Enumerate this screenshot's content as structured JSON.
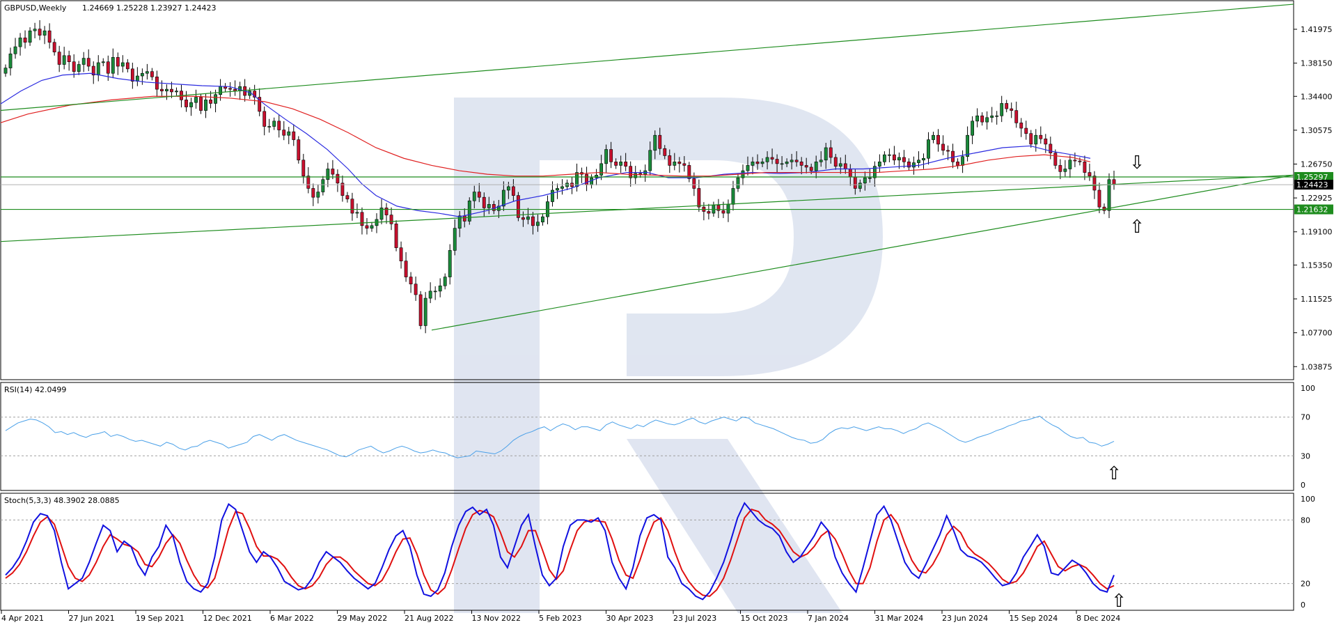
{
  "header": {
    "symbol_timeframe": "GBPUSD,Weekly",
    "ohlc": "1.24669 1.25228 1.23927 1.24423"
  },
  "colors": {
    "bull_candle": "#1a8a3a",
    "bear_candle": "#c8102e",
    "ma_fast": "#2a2ae0",
    "ma_slow": "#e02020",
    "channel": "#1e8c1e",
    "rsi_line": "#4aa0e8",
    "stoch_main": "#1010e0",
    "stoch_signal": "#e01010",
    "level_label_bg": "#1e8c1e",
    "price_label_bg": "#000000",
    "watermark": "#dde3f0"
  },
  "chart_data": [
    {
      "type": "candlestick",
      "title": "GBPUSD,Weekly",
      "ylim": [
        1.024,
        1.452
      ],
      "price_ticks": [
        "1.41975",
        "1.38150",
        "1.34400",
        "1.30575",
        "1.26750",
        "1.22925",
        "1.19100",
        "1.15350",
        "1.11525",
        "1.07700",
        "1.03875"
      ],
      "levels": [
        {
          "label": "1.25297",
          "value": 1.25297
        },
        {
          "label": "1.21632",
          "value": 1.21632
        }
      ],
      "last_price": {
        "label": "1.24423",
        "value": 1.24423
      },
      "x_labels": [
        "4 Apr 2021",
        "27 Jun 2021",
        "19 Sep 2021",
        "12 Dec 2021",
        "6 Mar 2022",
        "29 May 2022",
        "21 Aug 2022",
        "13 Nov 2022",
        "5 Feb 2023",
        "30 Apr 2023",
        "23 Jul 2023",
        "15 Oct 2023",
        "7 Jan 2024",
        "31 Mar 2024",
        "23 Jun 2024",
        "15 Sep 2024",
        "8 Dec 2024"
      ],
      "close_series": [
        1.376,
        1.392,
        1.4,
        1.41,
        1.405,
        1.418,
        1.42,
        1.413,
        1.418,
        1.405,
        1.394,
        1.38,
        1.39,
        1.383,
        1.372,
        1.38,
        1.387,
        1.378,
        1.368,
        1.382,
        1.383,
        1.37,
        1.388,
        1.378,
        1.382,
        1.375,
        1.361,
        1.367,
        1.37,
        1.372,
        1.366,
        1.352,
        1.35,
        1.352,
        1.349,
        1.35,
        1.34,
        1.332,
        1.337,
        1.343,
        1.328,
        1.34,
        1.336,
        1.346,
        1.355,
        1.353,
        1.352,
        1.35,
        1.355,
        1.345,
        1.35,
        1.343,
        1.327,
        1.31,
        1.31,
        1.316,
        1.306,
        1.3,
        1.304,
        1.295,
        1.272,
        1.254,
        1.24,
        1.23,
        1.236,
        1.25,
        1.262,
        1.256,
        1.246,
        1.232,
        1.228,
        1.212,
        1.213,
        1.198,
        1.195,
        1.198,
        1.205,
        1.218,
        1.21,
        1.2,
        1.173,
        1.158,
        1.14,
        1.132,
        1.12,
        1.085,
        1.116,
        1.124,
        1.124,
        1.13,
        1.14,
        1.17,
        1.195,
        1.209,
        1.203,
        1.226,
        1.236,
        1.23,
        1.218,
        1.222,
        1.215,
        1.22,
        1.238,
        1.242,
        1.232,
        1.207,
        1.205,
        1.208,
        1.198,
        1.202,
        1.208,
        1.225,
        1.238,
        1.24,
        1.242,
        1.246,
        1.242,
        1.258,
        1.256,
        1.244,
        1.252,
        1.255,
        1.268,
        1.284,
        1.27,
        1.266,
        1.27,
        1.265,
        1.252,
        1.257,
        1.256,
        1.26,
        1.283,
        1.3,
        1.285,
        1.277,
        1.266,
        1.27,
        1.268,
        1.266,
        1.251,
        1.24,
        1.219,
        1.214,
        1.212,
        1.221,
        1.215,
        1.212,
        1.222,
        1.24,
        1.252,
        1.26,
        1.266,
        1.27,
        1.268,
        1.27,
        1.275,
        1.273,
        1.268,
        1.268,
        1.27,
        1.272,
        1.27,
        1.266,
        1.264,
        1.26,
        1.27,
        1.272,
        1.286,
        1.275,
        1.265,
        1.268,
        1.262,
        1.253,
        1.24,
        1.246,
        1.252,
        1.252,
        1.265,
        1.27,
        1.278,
        1.278,
        1.272,
        1.275,
        1.27,
        1.264,
        1.269,
        1.272,
        1.274,
        1.295,
        1.3,
        1.29,
        1.283,
        1.282,
        1.27,
        1.266,
        1.276,
        1.3,
        1.316,
        1.322,
        1.315,
        1.32,
        1.322,
        1.322,
        1.336,
        1.33,
        1.328,
        1.314,
        1.308,
        1.302,
        1.29,
        1.3,
        1.296,
        1.29,
        1.28,
        1.266,
        1.259,
        1.262,
        1.272,
        1.271,
        1.27,
        1.258,
        1.254,
        1.238,
        1.219,
        1.215,
        1.25,
        1.244
      ],
      "ma_fast_points": [
        [
          0,
          1.335
        ],
        [
          30,
          1.35
        ],
        [
          60,
          1.362
        ],
        [
          90,
          1.368
        ],
        [
          130,
          1.37
        ],
        [
          170,
          1.364
        ],
        [
          210,
          1.36
        ],
        [
          250,
          1.358
        ],
        [
          290,
          1.356
        ],
        [
          330,
          1.355
        ],
        [
          360,
          1.348
        ],
        [
          380,
          1.335
        ],
        [
          410,
          1.318
        ],
        [
          440,
          1.302
        ],
        [
          470,
          1.284
        ],
        [
          500,
          1.262
        ],
        [
          520,
          1.245
        ],
        [
          540,
          1.232
        ],
        [
          570,
          1.22
        ],
        [
          600,
          1.215
        ],
        [
          630,
          1.212
        ],
        [
          660,
          1.208
        ],
        [
          700,
          1.215
        ],
        [
          740,
          1.226
        ],
        [
          780,
          1.232
        ],
        [
          820,
          1.24
        ],
        [
          860,
          1.252
        ],
        [
          900,
          1.258
        ],
        [
          930,
          1.258
        ],
        [
          960,
          1.252
        ],
        [
          1000,
          1.252
        ],
        [
          1040,
          1.256
        ],
        [
          1080,
          1.258
        ],
        [
          1120,
          1.257
        ],
        [
          1160,
          1.258
        ],
        [
          1200,
          1.262
        ],
        [
          1240,
          1.262
        ],
        [
          1280,
          1.264
        ],
        [
          1320,
          1.266
        ],
        [
          1360,
          1.274
        ],
        [
          1400,
          1.28
        ],
        [
          1440,
          1.286
        ],
        [
          1480,
          1.288
        ],
        [
          1510,
          1.282
        ],
        [
          1540,
          1.278
        ],
        [
          1566,
          1.274
        ]
      ],
      "ma_slow_points": [
        [
          0,
          1.314
        ],
        [
          40,
          1.324
        ],
        [
          100,
          1.334
        ],
        [
          160,
          1.34
        ],
        [
          220,
          1.344
        ],
        [
          280,
          1.344
        ],
        [
          330,
          1.342
        ],
        [
          380,
          1.338
        ],
        [
          420,
          1.33
        ],
        [
          460,
          1.318
        ],
        [
          500,
          1.303
        ],
        [
          540,
          1.286
        ],
        [
          580,
          1.274
        ],
        [
          620,
          1.266
        ],
        [
          660,
          1.26
        ],
        [
          700,
          1.256
        ],
        [
          740,
          1.254
        ],
        [
          780,
          1.254
        ],
        [
          820,
          1.256
        ],
        [
          860,
          1.258
        ],
        [
          900,
          1.256
        ],
        [
          940,
          1.255
        ],
        [
          980,
          1.254
        ],
        [
          1020,
          1.254
        ],
        [
          1060,
          1.256
        ],
        [
          1100,
          1.258
        ],
        [
          1140,
          1.258
        ],
        [
          1180,
          1.258
        ],
        [
          1220,
          1.258
        ],
        [
          1260,
          1.258
        ],
        [
          1300,
          1.26
        ],
        [
          1340,
          1.262
        ],
        [
          1380,
          1.266
        ],
        [
          1420,
          1.272
        ],
        [
          1460,
          1.276
        ],
        [
          1500,
          1.278
        ],
        [
          1540,
          1.275
        ],
        [
          1566,
          1.27
        ]
      ],
      "channel_lines": [
        {
          "from": [
            "Mar 2021",
            1.18
          ],
          "to": [
            "Jan 2025",
            1.255
          ]
        },
        {
          "from": [
            "Mar 2021",
            1.328
          ],
          "to": [
            "Jan 2025",
            1.448
          ]
        },
        {
          "from": [
            "Sep 2022",
            1.08
          ],
          "to": [
            "Jan 2025",
            1.255
          ]
        }
      ]
    },
    {
      "type": "line",
      "title": "RSI(14) 42.0499",
      "ylim": [
        0,
        100
      ],
      "levels": [
        30,
        70
      ],
      "y_ticks": [
        "100",
        "70",
        "30",
        "0"
      ],
      "values": [
        56,
        60,
        64,
        66,
        68,
        67,
        64,
        60,
        54,
        55,
        52,
        54,
        51,
        49,
        52,
        53,
        55,
        50,
        52,
        50,
        47,
        45,
        46,
        44,
        42,
        40,
        44,
        42,
        38,
        36,
        39,
        40,
        44,
        46,
        44,
        42,
        38,
        40,
        42,
        44,
        50,
        52,
        49,
        46,
        50,
        52,
        49,
        46,
        44,
        42,
        40,
        38,
        36,
        33,
        30,
        29,
        32,
        36,
        38,
        40,
        36,
        33,
        35,
        38,
        40,
        38,
        35,
        33,
        34,
        36,
        34,
        33,
        30,
        28,
        29,
        30,
        35,
        34,
        33,
        32,
        35,
        40,
        46,
        50,
        53,
        55,
        58,
        60,
        56,
        60,
        63,
        61,
        57,
        60,
        60,
        58,
        56,
        62,
        65,
        62,
        60,
        58,
        62,
        60,
        64,
        67,
        65,
        63,
        62,
        64,
        67,
        69,
        65,
        63,
        66,
        68,
        70,
        68,
        66,
        70,
        69,
        64,
        62,
        60,
        58,
        55,
        52,
        49,
        47,
        46,
        43,
        44,
        47,
        53,
        57,
        59,
        58,
        60,
        58,
        56,
        58,
        60,
        58,
        58,
        56,
        53,
        56,
        58,
        62,
        64,
        61,
        58,
        54,
        50,
        46,
        44,
        46,
        49,
        51,
        53,
        56,
        58,
        61,
        63,
        66,
        67,
        69,
        71,
        66,
        62,
        59,
        54,
        50,
        48,
        49,
        44,
        43,
        40,
        42,
        45
      ],
      "arrow_up_label": "⇧"
    },
    {
      "type": "line",
      "title": "Stoch(5,3,3) 48.3902 28.0885",
      "ylim": [
        0,
        100
      ],
      "levels": [
        20,
        80
      ],
      "y_ticks": [
        "100",
        "80",
        "20",
        "0"
      ],
      "main_values": [
        28,
        35,
        45,
        60,
        78,
        86,
        84,
        70,
        40,
        15,
        20,
        25,
        40,
        58,
        75,
        70,
        50,
        60,
        55,
        38,
        28,
        45,
        55,
        75,
        65,
        40,
        22,
        15,
        12,
        20,
        45,
        80,
        95,
        90,
        70,
        50,
        40,
        50,
        45,
        35,
        22,
        18,
        14,
        16,
        25,
        40,
        50,
        45,
        40,
        32,
        25,
        20,
        15,
        20,
        35,
        52,
        65,
        70,
        55,
        28,
        10,
        8,
        14,
        30,
        55,
        75,
        88,
        92,
        85,
        90,
        75,
        45,
        35,
        55,
        75,
        85,
        55,
        28,
        18,
        25,
        55,
        75,
        80,
        80,
        78,
        82,
        70,
        40,
        25,
        15,
        35,
        65,
        82,
        85,
        80,
        45,
        35,
        20,
        15,
        8,
        5,
        12,
        25,
        40,
        60,
        82,
        96,
        88,
        80,
        75,
        72,
        65,
        50,
        40,
        45,
        55,
        65,
        78,
        70,
        45,
        30,
        20,
        12,
        35,
        60,
        85,
        93,
        80,
        60,
        40,
        30,
        25,
        38,
        52,
        66,
        84,
        70,
        52,
        46,
        44,
        40,
        33,
        25,
        18,
        20,
        30,
        45,
        55,
        66,
        55,
        30,
        28,
        35,
        42,
        38,
        30,
        20,
        14,
        12,
        28
      ],
      "signal_values": [
        25,
        30,
        38,
        50,
        65,
        78,
        83,
        76,
        56,
        36,
        25,
        22,
        28,
        40,
        55,
        66,
        62,
        57,
        55,
        50,
        38,
        36,
        45,
        58,
        66,
        58,
        42,
        28,
        18,
        16,
        25,
        48,
        72,
        88,
        86,
        72,
        55,
        46,
        46,
        43,
        36,
        26,
        18,
        15,
        18,
        26,
        38,
        45,
        45,
        40,
        32,
        26,
        20,
        18,
        23,
        35,
        50,
        62,
        63,
        48,
        28,
        14,
        10,
        16,
        33,
        53,
        72,
        85,
        89,
        87,
        83,
        68,
        50,
        45,
        55,
        70,
        70,
        52,
        33,
        24,
        32,
        52,
        70,
        78,
        80,
        79,
        78,
        62,
        42,
        28,
        25,
        42,
        62,
        78,
        82,
        70,
        50,
        33,
        22,
        14,
        9,
        8,
        14,
        25,
        42,
        62,
        82,
        90,
        88,
        80,
        76,
        70,
        60,
        50,
        45,
        48,
        55,
        65,
        70,
        62,
        48,
        32,
        20,
        20,
        35,
        60,
        80,
        85,
        76,
        58,
        42,
        32,
        30,
        38,
        50,
        66,
        74,
        68,
        55,
        48,
        44,
        39,
        32,
        24,
        20,
        22,
        30,
        42,
        55,
        60,
        48,
        36,
        32,
        36,
        38,
        35,
        28,
        20,
        15,
        18
      ]
    }
  ],
  "annotations": {
    "arrow_down": "⇩",
    "arrow_up": "⇧"
  }
}
